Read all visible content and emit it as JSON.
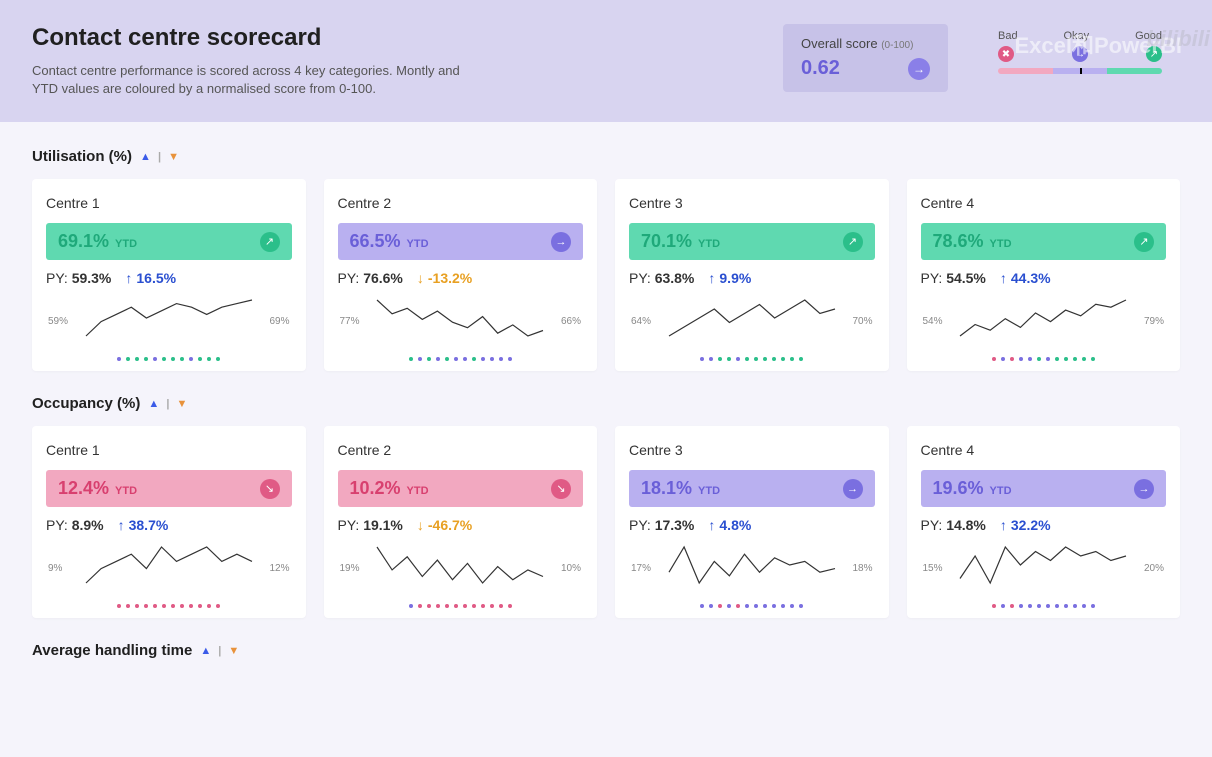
{
  "colors": {
    "page_bg": "#f5f4fb",
    "header_bg": "#d8d4f0",
    "overall_bg": "#c7c2e8",
    "good_bg": "#5fd9b0",
    "good_text": "#1fa97a",
    "good_icon": "#2bbf8a",
    "okay_bg": "#b9b0f0",
    "okay_text": "#6a5fd8",
    "okay_icon": "#7a6fe0",
    "bad_bg": "#f2a8c0",
    "bad_text": "#d8406f",
    "bad_icon": "#e05a85",
    "delta_up": "#2a4fd0",
    "delta_down": "#e8a022",
    "spark_line": "#333333",
    "dot_colors": [
      "#e05a85",
      "#7a6fe0",
      "#2bbf8a",
      "#e8a022"
    ]
  },
  "header": {
    "title": "Contact centre scorecard",
    "subtitle": "Contact centre performance is scored across 4 key categories. Montly and YTD values are coloured by a normalised score from 0-100."
  },
  "overall": {
    "label": "Overall score",
    "range": "(0-100)",
    "value": "0.62"
  },
  "legend": {
    "labels": [
      "Bad",
      "Okay",
      "Good"
    ],
    "seg_colors": [
      "#f2a8c0",
      "#b9b0f0",
      "#5fd9b0"
    ],
    "icon_colors": [
      "#e05a85",
      "#7a6fe0",
      "#2bbf8a"
    ],
    "marker_pct": 50
  },
  "watermark": "Excel和PowerBI",
  "sections": [
    {
      "title": "Utilisation (%)",
      "cards": [
        {
          "name": "Centre 1",
          "ytd": "69.1%",
          "ytd_label": "YTD",
          "status": "good",
          "py": "59.3%",
          "delta": "16.5%",
          "delta_dir": "up",
          "spark": [
            59,
            63,
            65,
            67,
            64,
            66,
            68,
            67,
            65,
            67,
            68,
            69
          ],
          "spark_start": "59%",
          "spark_end": "69%",
          "dots": [
            "okay",
            "good",
            "good",
            "good",
            "okay",
            "good",
            "good",
            "good",
            "okay",
            "good",
            "good",
            "good"
          ]
        },
        {
          "name": "Centre 2",
          "ytd": "66.5%",
          "ytd_label": "YTD",
          "status": "okay",
          "py": "76.6%",
          "delta": "-13.2%",
          "delta_dir": "down",
          "spark": [
            77,
            72,
            74,
            70,
            73,
            69,
            67,
            71,
            65,
            68,
            64,
            66
          ],
          "spark_start": "77%",
          "spark_end": "66%",
          "dots": [
            "good",
            "okay",
            "good",
            "okay",
            "good",
            "okay",
            "okay",
            "good",
            "okay",
            "okay",
            "okay",
            "okay"
          ]
        },
        {
          "name": "Centre 3",
          "ytd": "70.1%",
          "ytd_label": "YTD",
          "status": "good",
          "py": "63.8%",
          "delta": "9.9%",
          "delta_dir": "up",
          "spark": [
            64,
            66,
            68,
            70,
            67,
            69,
            71,
            68,
            70,
            72,
            69,
            70
          ],
          "spark_start": "64%",
          "spark_end": "70%",
          "dots": [
            "okay",
            "okay",
            "good",
            "good",
            "okay",
            "good",
            "good",
            "good",
            "good",
            "good",
            "good",
            "good"
          ]
        },
        {
          "name": "Centre 4",
          "ytd": "78.6%",
          "ytd_label": "YTD",
          "status": "good",
          "py": "54.5%",
          "delta": "44.3%",
          "delta_dir": "up",
          "spark": [
            54,
            62,
            58,
            66,
            60,
            70,
            64,
            72,
            68,
            76,
            74,
            79
          ],
          "spark_start": "54%",
          "spark_end": "79%",
          "dots": [
            "bad",
            "okay",
            "bad",
            "okay",
            "okay",
            "good",
            "okay",
            "good",
            "good",
            "good",
            "good",
            "good"
          ]
        }
      ]
    },
    {
      "title": "Occupancy (%)",
      "cards": [
        {
          "name": "Centre 1",
          "ytd": "12.4%",
          "ytd_label": "YTD",
          "status": "bad",
          "py": "8.9%",
          "delta": "38.7%",
          "delta_dir": "up",
          "spark": [
            9,
            11,
            12,
            13,
            11,
            14,
            12,
            13,
            14,
            12,
            13,
            12
          ],
          "spark_start": "9%",
          "spark_end": "12%",
          "dots": [
            "bad",
            "bad",
            "bad",
            "bad",
            "bad",
            "bad",
            "bad",
            "bad",
            "bad",
            "bad",
            "bad",
            "bad"
          ]
        },
        {
          "name": "Centre 2",
          "ytd": "10.2%",
          "ytd_label": "YTD",
          "status": "bad",
          "py": "19.1%",
          "delta": "-46.7%",
          "delta_dir": "down",
          "spark": [
            19,
            12,
            16,
            10,
            15,
            9,
            14,
            8,
            13,
            9,
            12,
            10
          ],
          "spark_start": "19%",
          "spark_end": "10%",
          "dots": [
            "okay",
            "bad",
            "bad",
            "bad",
            "bad",
            "bad",
            "bad",
            "bad",
            "bad",
            "bad",
            "bad",
            "bad"
          ]
        },
        {
          "name": "Centre 3",
          "ytd": "18.1%",
          "ytd_label": "YTD",
          "status": "okay",
          "py": "17.3%",
          "delta": "4.8%",
          "delta_dir": "up",
          "spark": [
            17,
            24,
            14,
            20,
            16,
            22,
            17,
            21,
            19,
            20,
            17,
            18
          ],
          "spark_start": "17%",
          "spark_end": "18%",
          "dots": [
            "okay",
            "okay",
            "bad",
            "okay",
            "bad",
            "okay",
            "okay",
            "okay",
            "okay",
            "okay",
            "okay",
            "okay"
          ]
        },
        {
          "name": "Centre 4",
          "ytd": "19.6%",
          "ytd_label": "YTD",
          "status": "okay",
          "py": "14.8%",
          "delta": "32.2%",
          "delta_dir": "up",
          "spark": [
            15,
            20,
            14,
            22,
            18,
            21,
            19,
            22,
            20,
            21,
            19,
            20
          ],
          "spark_start": "15%",
          "spark_end": "20%",
          "dots": [
            "bad",
            "okay",
            "bad",
            "okay",
            "okay",
            "okay",
            "okay",
            "okay",
            "okay",
            "okay",
            "okay",
            "okay"
          ]
        }
      ]
    },
    {
      "title": "Average handling time",
      "cards": []
    }
  ]
}
